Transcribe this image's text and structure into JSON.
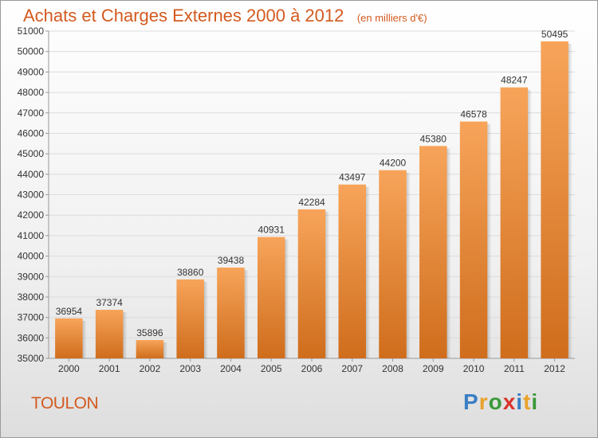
{
  "header": {
    "title": "Achats et Charges Externes 2000 à 2012",
    "unit": "(en milliers d'€)"
  },
  "footer": {
    "city": "TOULON",
    "brand_letters": [
      {
        "ch": "P",
        "color": "#3a7fc4"
      },
      {
        "ch": "r",
        "color": "#e8a22c"
      },
      {
        "ch": "o",
        "color": "#3a9a3a"
      },
      {
        "ch": "x",
        "color": "#d8332a"
      },
      {
        "ch": "i",
        "color": "#3a7fc4"
      },
      {
        "ch": "t",
        "color": "#e8a22c"
      },
      {
        "ch": "i",
        "color": "#3a9a3a"
      }
    ]
  },
  "colors": {
    "accent": "#d35a1f",
    "bar_light": "#f7a45a",
    "bar_dark": "#cf6d1c"
  },
  "chart_data": {
    "type": "bar",
    "title": "Achats et Charges Externes 2000 à 2012",
    "categories": [
      "2000",
      "2001",
      "2002",
      "2003",
      "2004",
      "2005",
      "2006",
      "2007",
      "2008",
      "2009",
      "2010",
      "2011",
      "2012"
    ],
    "values": [
      36954,
      37374,
      35896,
      38860,
      39438,
      40931,
      42284,
      43497,
      44200,
      45380,
      46578,
      48247,
      50495
    ],
    "ylim": [
      35000,
      51000
    ],
    "yticks": [
      35000,
      36000,
      37000,
      38000,
      39000,
      40000,
      41000,
      42000,
      43000,
      44000,
      45000,
      46000,
      47000,
      48000,
      49000,
      50000,
      51000
    ],
    "grid": true,
    "legend": "none"
  }
}
